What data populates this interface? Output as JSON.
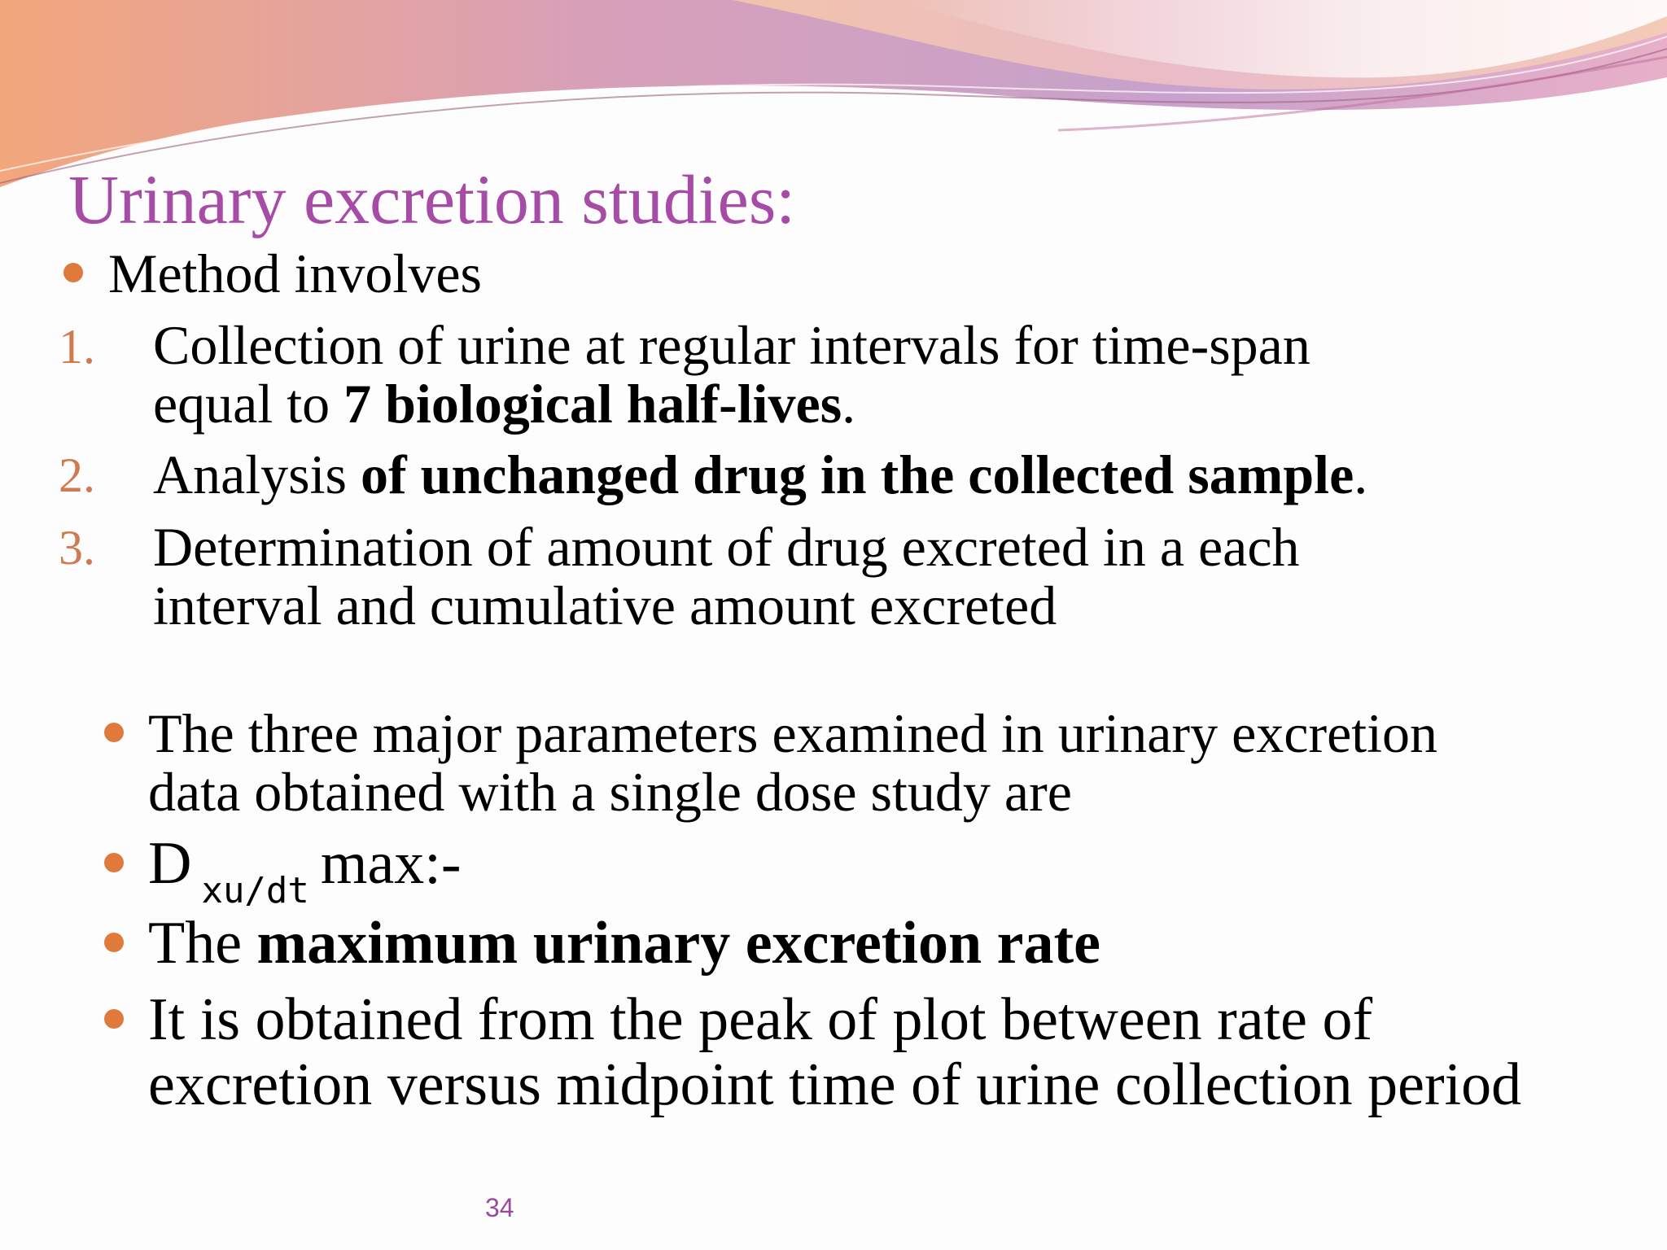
{
  "slide": {
    "title": "Urinary excretion studies:",
    "intro_bullet": "Method involves",
    "steps": [
      {
        "number": "1.",
        "line1": "Collection of urine at regular intervals for time-span",
        "line2_prefix": "equal to ",
        "line2_bold": "7 biological half-lives",
        "line2_suffix": "."
      },
      {
        "number": "2.",
        "prefix": "Analysis ",
        "bold": "of unchanged drug in the collected sample",
        "suffix": "."
      },
      {
        "number": "3.",
        "line1": "Determination of amount of drug excreted in a each",
        "line2": "interval and cumulative amount excreted"
      }
    ],
    "parameters_bullet": {
      "line1": "The three major parameters examined in urinary excretion",
      "line2": "data obtained with a single dose study are"
    },
    "dxu_bullet": {
      "main": "D",
      "subscript": "xu/dt",
      "suffix": "max:-"
    },
    "rate_bullet": {
      "prefix": "The ",
      "bold": "maximum urinary excretion rate"
    },
    "peak_bullet": {
      "line1": "It is obtained from the peak of plot between rate of",
      "line2": "excretion versus midpoint time of urine collection period"
    },
    "page_number": "34"
  },
  "colors": {
    "title": "#a64ca6",
    "bullet": "#e07a3a",
    "numbering": "#d07a50",
    "page_number": "#9a4a9a"
  }
}
